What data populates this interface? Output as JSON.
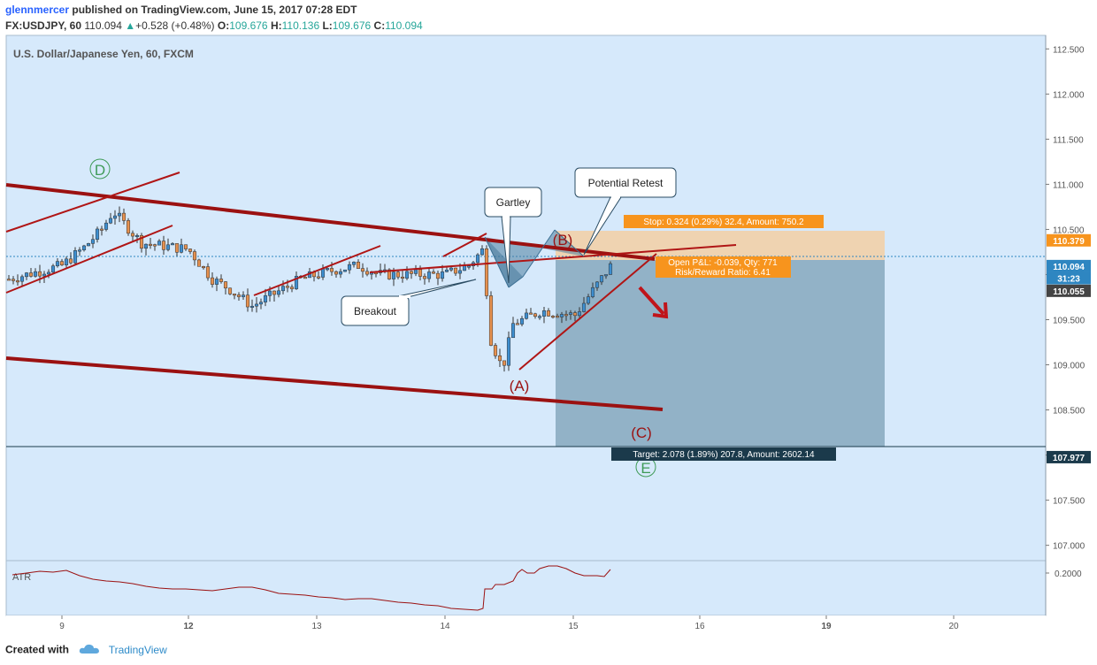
{
  "header": {
    "user": "glennmercer",
    "published": "published on TradingView.com, June 15, 2017 07:28 EDT",
    "symbol": "FX:USDJPY, 60",
    "last": "110.094",
    "change": "+0.528 (+0.48%)",
    "o_label": "O:",
    "o": "109.676",
    "h_label": "H:",
    "h": "110.136",
    "l_label": "L:",
    "l": "109.676",
    "c_label": "C:",
    "c": "110.094"
  },
  "chart_title": "U.S. Dollar/Japanese Yen, 60, FXCM",
  "y_axis": {
    "ticks": [
      "112.500",
      "112.000",
      "111.500",
      "111.000",
      "110.500",
      "110.000",
      "109.500",
      "109.000",
      "108.500",
      "108.000",
      "107.500",
      "107.000"
    ],
    "tick_values": [
      112.5,
      112.0,
      111.5,
      111.0,
      110.5,
      110.0,
      109.5,
      109.0,
      108.5,
      108.0,
      107.5,
      107.0
    ],
    "tags": [
      {
        "text": "110.379",
        "value": 110.379,
        "bg": "#f7941d"
      },
      {
        "text": "110.094",
        "value": 110.094,
        "bg": "#2e86c1"
      },
      {
        "text": "31:23",
        "value": 109.96,
        "bg": "#2e86c1"
      },
      {
        "text": "110.055",
        "value": 109.82,
        "bg": "#444444"
      },
      {
        "text": "107.977",
        "value": 107.977,
        "bg": "#1b3a4b"
      }
    ]
  },
  "x_axis": {
    "ticks": [
      {
        "label": "9",
        "bold": false
      },
      {
        "label": "12",
        "bold": true
      },
      {
        "label": "13",
        "bold": false
      },
      {
        "label": "14",
        "bold": false
      },
      {
        "label": "15",
        "bold": false
      },
      {
        "label": "16",
        "bold": false
      },
      {
        "label": "19",
        "bold": true
      },
      {
        "label": "20",
        "bold": false
      }
    ]
  },
  "annotations": {
    "wave_D": "D",
    "wave_A": "(A)",
    "wave_B": "(B)",
    "wave_C": "(C)",
    "wave_E": "E",
    "gartley": "Gartley",
    "potential_retest": "Potential Retest",
    "breakout": "Breakout",
    "stop": "Stop: 0.324 (0.29%) 32.4, Amount: 750.2",
    "open_pl": "Open P&L: -0.039, Qty: 771",
    "risk_reward": "Risk/Reward Ratio: 6.41",
    "target": "Target: 2.078 (1.89%) 207.8, Amount: 2602.14"
  },
  "atr": {
    "label": "ATR",
    "tick": "0.2000"
  },
  "footer": {
    "created_with": "Created with",
    "brand": "TradingView"
  },
  "colors": {
    "background": "#d6e9fb",
    "up": "#3d8ecf",
    "down": "#e6914f",
    "trendline": "#9b1111",
    "stop_zone": "#f5cfa0",
    "target_zone": "#7b9eb5"
  },
  "chart_data": {
    "type": "candlestick",
    "title": "U.S. Dollar/Japanese Yen, 60, FXCM",
    "x_sessions": [
      "9",
      "12",
      "13",
      "14",
      "15",
      "16",
      "19",
      "20"
    ],
    "ylim": [
      106.83,
      112.65
    ],
    "close_path": [
      {
        "x": "Jun 8 late",
        "close": 109.95
      },
      {
        "x": "Jun 9 00:00",
        "close": 110.1
      },
      {
        "x": "Jun 9 06:00",
        "close": 110.3
      },
      {
        "x": "Jun 9 12:00",
        "close": 110.5
      },
      {
        "x": "Jun 9 18:00",
        "close": 110.7
      },
      {
        "x": "Jun 11",
        "close": 110.35
      },
      {
        "x": "Jun 12 00:00",
        "close": 110.28
      },
      {
        "x": "Jun 12 06:00",
        "close": 109.95
      },
      {
        "x": "Jun 12 12:00",
        "close": 109.85
      },
      {
        "x": "Jun 12 18:00",
        "close": 109.65
      },
      {
        "x": "Jun 13 00:00",
        "close": 109.95
      },
      {
        "x": "Jun 13 06:00",
        "close": 110.05
      },
      {
        "x": "Jun 13 12:00",
        "close": 110.1
      },
      {
        "x": "Jun 13 18:00",
        "close": 110.0
      },
      {
        "x": "Jun 14 00:00",
        "close": 110.0
      },
      {
        "x": "Jun 14 06:00",
        "close": 110.1
      },
      {
        "x": "Jun 14 12:00",
        "close": 110.3
      },
      {
        "x": "Jun 14 14:00",
        "close": 109.35
      },
      {
        "x": "Jun 14 16:00",
        "close": 108.95
      },
      {
        "x": "Jun 14 20:00",
        "close": 109.45
      },
      {
        "x": "Jun 15 00:00",
        "close": 109.6
      },
      {
        "x": "Jun 15 04:00",
        "close": 109.55
      },
      {
        "x": "Jun 15 07:00",
        "close": 110.094
      }
    ],
    "levels": {
      "stop": 110.379,
      "entry": 110.094,
      "target": 107.977
    },
    "atr": {
      "range": [
        0.19,
        0.21
      ],
      "tick": 0.2
    }
  }
}
